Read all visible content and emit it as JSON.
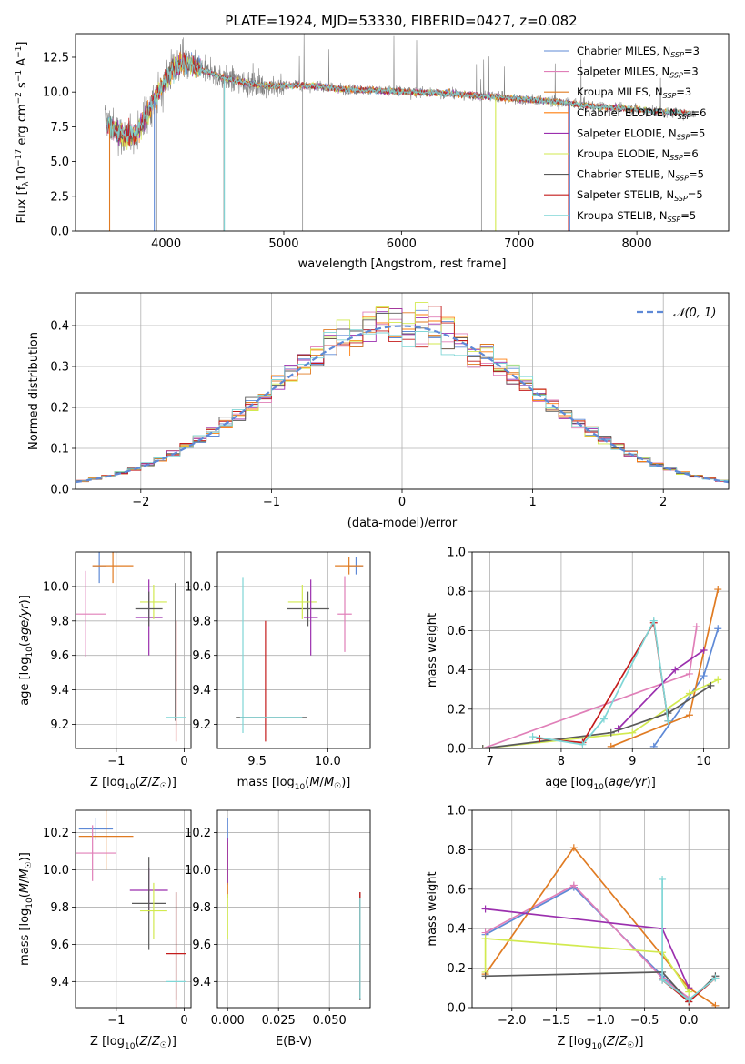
{
  "figure_title": "PLATE=1924, MJD=53330, FIBERID=0427, z=0.082",
  "colors": {
    "Chabrier MILES": "#5e89d6",
    "Salpeter MILES": "#e07fb8",
    "Kroupa MILES": "#e07b22",
    "Chabrier ELODIE": "#ff7f0e",
    "Salpeter ELODIE": "#9b2fae",
    "Kroupa ELODIE": "#d2ea4f",
    "Chabrier STELIB": "#5a5a5a",
    "Salpeter STELIB": "#c41c1c",
    "Kroupa STELIB": "#7fd6d6",
    "data": "#808080",
    "normal": "#5e89d6",
    "grid": "#b0b0b0"
  },
  "chart_data": [
    {
      "type": "line",
      "id": "spectrum",
      "title": "PLATE=1924, MJD=53330, FIBERID=0427, z=0.082",
      "xlabel": "wavelength [Angstrom, rest frame]",
      "ylabel": "Flux [f$_\\lambda$10$^{-17}$ erg cm$^{-2}$ s$^{-1}$ A$^{-1}$]",
      "ylabel_parts": [
        "Flux [f",
        "λ",
        "10",
        "−17",
        " erg cm",
        "−2",
        " s",
        "−1",
        " A",
        "−1",
        "]"
      ],
      "xlim": [
        3230,
        8780
      ],
      "ylim": [
        0,
        14.2
      ],
      "xticks": [
        4000,
        5000,
        6000,
        7000,
        8000
      ],
      "xtick_labels": [
        "4000",
        "5000",
        "6000",
        "7000",
        "8000"
      ],
      "yticks": [
        0.0,
        2.5,
        5.0,
        7.5,
        10.0,
        12.5
      ],
      "ytick_labels": [
        "0.0",
        "2.5",
        "5.0",
        "7.5",
        "10.0",
        "12.5"
      ],
      "grid": false,
      "legend_position": "top-right",
      "legend": [
        {
          "name": "Chabrier MILES",
          "nssp": "3"
        },
        {
          "name": "Salpeter MILES",
          "nssp": "3"
        },
        {
          "name": "Kroupa MILES",
          "nssp": "3"
        },
        {
          "name": "Chabrier ELODIE",
          "nssp": "6"
        },
        {
          "name": "Salpeter ELODIE",
          "nssp": "5"
        },
        {
          "name": "Kroupa ELODIE",
          "nssp": "6"
        },
        {
          "name": "Chabrier STELIB",
          "nssp": "5"
        },
        {
          "name": "Salpeter STELIB",
          "nssp": "5"
        },
        {
          "name": "Kroupa STELIB",
          "nssp": "5"
        }
      ],
      "legend_sub": "SSP",
      "legend_prefix": "N",
      "continuum": {
        "x": [
          3500,
          3550,
          3650,
          3750,
          3850,
          3950,
          4050,
          4150,
          4300,
          4500,
          4700,
          4900,
          5100,
          5300,
          5500,
          5800,
          6100,
          6400,
          6700,
          7000,
          7300,
          7600,
          7900,
          8200,
          8500
        ],
        "y": [
          7.8,
          7.4,
          6.8,
          7.0,
          8.6,
          10.2,
          11.6,
          12.2,
          11.6,
          11.0,
          10.6,
          10.4,
          10.5,
          10.4,
          10.2,
          10.1,
          10.0,
          9.9,
          9.7,
          9.5,
          9.3,
          9.0,
          8.8,
          8.6,
          8.4
        ]
      },
      "model_dropouts": [
        {
          "series": "Kroupa MILES",
          "x": 3520
        },
        {
          "series": "Chabrier MILES",
          "x": 3900
        },
        {
          "series": "Kroupa STELIB",
          "x": 4495
        },
        {
          "series": "Kroupa ELODIE",
          "x": 6800
        },
        {
          "series": "Salpeter STELIB",
          "x": 7420
        },
        {
          "series": "Chabrier MILES",
          "x": 7430
        }
      ]
    },
    {
      "type": "step",
      "id": "residuals",
      "xlabel": "(data-model)/error",
      "ylabel": "Normed distribution",
      "xlim": [
        -2.5,
        2.5
      ],
      "ylim": [
        0,
        0.48
      ],
      "xticks": [
        -2,
        -1,
        0,
        1,
        2
      ],
      "xtick_labels": [
        "−2",
        "−1",
        "0",
        "1",
        "2"
      ],
      "yticks": [
        0.0,
        0.1,
        0.2,
        0.3,
        0.4
      ],
      "ytick_labels": [
        "0.0",
        "0.1",
        "0.2",
        "0.3",
        "0.4"
      ],
      "grid": true,
      "legend_position": "top-right",
      "normal_label": "𝒩(0, 1)",
      "bin_width": 0.1
    },
    {
      "type": "scatter",
      "id": "age-vs-Z",
      "xlabel": "Z [log10(Z/Z☉)]",
      "ylabel": "age  [log10(age/yr)]",
      "xlim": [
        -1.6,
        0.1
      ],
      "ylim": [
        9.06,
        10.2
      ],
      "xticks": [
        -1,
        0
      ],
      "xtick_labels": [
        "−1",
        "0"
      ],
      "yticks": [
        9.2,
        9.4,
        9.6,
        9.8,
        10.0
      ],
      "ytick_labels": [
        "9.2",
        "9.4",
        "9.6",
        "9.8",
        "10.0"
      ],
      "grid": true,
      "points": [
        {
          "series": "Chabrier MILES",
          "x": -1.25,
          "y": 10.12,
          "xerr": 0.1,
          "yerr": 0.1
        },
        {
          "series": "Kroupa MILES",
          "x": -1.05,
          "y": 10.12,
          "xerr": 0.3,
          "yerr": 0.1
        },
        {
          "series": "Salpeter MILES",
          "x": -1.45,
          "y": 9.84,
          "xerr": 0.3,
          "yerr": 0.25
        },
        {
          "series": "Salpeter ELODIE",
          "x": -0.52,
          "y": 9.82,
          "xerr": 0.2,
          "yerr": 0.22
        },
        {
          "series": "Kroupa ELODIE",
          "x": -0.45,
          "y": 9.91,
          "xerr": 0.2,
          "yerr": 0.1
        },
        {
          "series": "Chabrier STELIB",
          "x": -0.52,
          "y": 9.87,
          "xerr": 0.2,
          "yerr": 0.1
        },
        {
          "series": "Chabrier STELIB",
          "x": -0.13,
          "y": 9.62,
          "xerr": 0.0,
          "yerr": 0.4
        },
        {
          "series": "Salpeter STELIB",
          "x": -0.12,
          "y": 9.45,
          "xerr": 0.0,
          "yerr": 0.35
        },
        {
          "series": "Kroupa STELIB",
          "x": -0.12,
          "y": 9.24,
          "xerr": 0.15,
          "yerr": 0.0
        }
      ]
    },
    {
      "type": "scatter",
      "id": "age-vs-mass",
      "xlabel": "mass [log10(M/M☉)]",
      "ylabel": "",
      "xlim": [
        9.22,
        10.3
      ],
      "ylim": [
        9.06,
        10.2
      ],
      "xticks": [
        9.5,
        10.0
      ],
      "xtick_labels": [
        "9.5",
        "10.0"
      ],
      "yticks": [
        9.2,
        9.4,
        9.6,
        9.8,
        10.0
      ],
      "ytick_labels": [
        "9.2",
        "9.4",
        "9.6",
        "9.8",
        "10.0"
      ],
      "grid": true,
      "points": [
        {
          "series": "Kroupa STELIB",
          "x": 9.4,
          "y": 9.6,
          "xerr": 0.0,
          "yerr": 0.45
        },
        {
          "series": "Salpeter STELIB",
          "x": 9.56,
          "y": 9.45,
          "xerr": 0.0,
          "yerr": 0.35
        },
        {
          "series": "Chabrier STELIB",
          "x": 9.6,
          "y": 9.24,
          "xerr": 0.25,
          "yerr": 0.0
        },
        {
          "series": "Kroupa STELIB",
          "x": 9.6,
          "y": 9.24,
          "xerr": 0.22,
          "yerr": 0.0
        },
        {
          "series": "Chabrier STELIB",
          "x": 9.86,
          "y": 9.87,
          "xerr": 0.15,
          "yerr": 0.1
        },
        {
          "series": "Kroupa ELODIE",
          "x": 9.82,
          "y": 9.91,
          "xerr": 0.1,
          "yerr": 0.1
        },
        {
          "series": "Salpeter ELODIE",
          "x": 9.88,
          "y": 9.82,
          "xerr": 0.05,
          "yerr": 0.22
        },
        {
          "series": "Salpeter MILES",
          "x": 10.12,
          "y": 9.84,
          "xerr": 0.05,
          "yerr": 0.22
        },
        {
          "series": "Chabrier MILES",
          "x": 10.2,
          "y": 10.12,
          "xerr": 0.05,
          "yerr": 0.05
        },
        {
          "series": "Kroupa MILES",
          "x": 10.15,
          "y": 10.12,
          "xerr": 0.1,
          "yerr": 0.05
        }
      ]
    },
    {
      "type": "line",
      "id": "weight-vs-age",
      "xlabel": "age  [log10(age/yr)]",
      "ylabel": "mass weight",
      "xlim": [
        6.75,
        10.35
      ],
      "ylim": [
        0.0,
        1.0
      ],
      "xticks": [
        7,
        8,
        9,
        10
      ],
      "xtick_labels": [
        "7",
        "8",
        "9",
        "10"
      ],
      "yticks": [
        0.0,
        0.2,
        0.4,
        0.6,
        0.8,
        1.0
      ],
      "ytick_labels": [
        "0.0",
        "0.2",
        "0.4",
        "0.6",
        "0.8",
        "1.0"
      ],
      "grid": true,
      "series": [
        {
          "name": "Chabrier MILES",
          "x": [
            9.3,
            10.0,
            10.2
          ],
          "y": [
            0.01,
            0.37,
            0.61
          ]
        },
        {
          "name": "Salpeter MILES",
          "x": [
            6.9,
            9.8,
            9.9
          ],
          "y": [
            0.0,
            0.38,
            0.62
          ]
        },
        {
          "name": "Kroupa MILES",
          "x": [
            8.7,
            9.8,
            10.2
          ],
          "y": [
            0.01,
            0.17,
            0.81
          ]
        },
        {
          "name": "Salpeter ELODIE",
          "x": [
            8.8,
            9.6,
            10.0
          ],
          "y": [
            0.1,
            0.4,
            0.5
          ]
        },
        {
          "name": "Kroupa ELODIE",
          "x": [
            6.9,
            9.0,
            9.8,
            10.2
          ],
          "y": [
            0.0,
            0.08,
            0.28,
            0.35
          ]
        },
        {
          "name": "Chabrier STELIB",
          "x": [
            6.9,
            8.7,
            9.5,
            10.1
          ],
          "y": [
            0.0,
            0.08,
            0.18,
            0.32
          ]
        },
        {
          "name": "Salpeter STELIB",
          "x": [
            7.7,
            8.3,
            9.3,
            9.5
          ],
          "y": [
            0.05,
            0.03,
            0.64,
            0.14
          ]
        },
        {
          "name": "Kroupa STELIB",
          "x": [
            7.6,
            8.3,
            8.6,
            9.3,
            9.5
          ],
          "y": [
            0.06,
            0.02,
            0.15,
            0.65,
            0.14
          ]
        }
      ]
    },
    {
      "type": "scatter",
      "id": "mass-vs-Z",
      "xlabel": "Z [log10(Z/Z☉)]",
      "ylabel": "mass [log10(M/M☉)]",
      "xlim": [
        -1.6,
        0.1
      ],
      "ylim": [
        9.26,
        10.32
      ],
      "xticks": [
        -1,
        0
      ],
      "xtick_labels": [
        "−1",
        "0"
      ],
      "yticks": [
        9.4,
        9.6,
        9.8,
        10.0,
        10.2
      ],
      "ytick_labels": [
        "9.4",
        "9.6",
        "9.8",
        "10.0",
        "10.2"
      ],
      "grid": true,
      "points": [
        {
          "series": "Chabrier MILES",
          "x": -1.3,
          "y": 10.22,
          "xerr": 0.25,
          "yerr": 0.06
        },
        {
          "series": "Kroupa MILES",
          "x": -1.15,
          "y": 10.18,
          "xerr": 0.4,
          "yerr": 0.18
        },
        {
          "series": "Salpeter MILES",
          "x": -1.35,
          "y": 10.09,
          "xerr": 0.35,
          "yerr": 0.15
        },
        {
          "series": "Salpeter ELODIE",
          "x": -0.52,
          "y": 9.89,
          "xerr": 0.28,
          "yerr": 0.12
        },
        {
          "series": "Chabrier STELIB",
          "x": -0.52,
          "y": 9.82,
          "xerr": 0.25,
          "yerr": 0.25
        },
        {
          "series": "Kroupa ELODIE",
          "x": -0.45,
          "y": 9.78,
          "xerr": 0.2,
          "yerr": 0.15
        },
        {
          "series": "Chabrier STELIB",
          "x": -0.12,
          "y": 9.59,
          "xerr": 0.0,
          "yerr": 0.29
        },
        {
          "series": "Salpeter STELIB",
          "x": -0.12,
          "y": 9.55,
          "xerr": 0.15,
          "yerr": 0.33
        },
        {
          "series": "Kroupa STELIB",
          "x": -0.12,
          "y": 9.4,
          "xerr": 0.15,
          "yerr": 0.0
        }
      ]
    },
    {
      "type": "scatter",
      "id": "mass-vs-ebv",
      "xlabel": "E(B-V)",
      "ylabel": "",
      "xlim": [
        -0.005,
        0.07
      ],
      "ylim": [
        9.26,
        10.32
      ],
      "xticks": [
        0.0,
        0.025,
        0.05
      ],
      "xtick_labels": [
        "0.000",
        "0.025",
        "0.050"
      ],
      "yticks": [
        9.4,
        9.6,
        9.8,
        10.0,
        10.2
      ],
      "ytick_labels": [
        "9.4",
        "9.6",
        "9.8",
        "10.0",
        "10.2"
      ],
      "grid": true,
      "points": [
        {
          "series": "Chabrier MILES",
          "x": 0.0,
          "y": 10.1,
          "xerr": 0.0,
          "yerr": 0.18
        },
        {
          "series": "Kroupa MILES",
          "x": 0.0,
          "y": 10.0,
          "xerr": 0.0,
          "yerr": 0.15
        },
        {
          "series": "Salpeter ELODIE",
          "x": 0.0,
          "y": 10.05,
          "xerr": 0.0,
          "yerr": 0.12
        },
        {
          "series": "Kroupa ELODIE",
          "x": 0.0,
          "y": 9.75,
          "xerr": 0.0,
          "yerr": 0.12
        },
        {
          "series": "Chabrier STELIB",
          "x": 0.065,
          "y": 9.59,
          "xerr": 0.0,
          "yerr": 0.29
        },
        {
          "series": "Salpeter STELIB",
          "x": 0.065,
          "y": 9.6,
          "xerr": 0.0,
          "yerr": 0.28
        },
        {
          "series": "Kroupa STELIB",
          "x": 0.065,
          "y": 9.58,
          "xerr": 0.0,
          "yerr": 0.27
        }
      ]
    },
    {
      "type": "line",
      "id": "weight-vs-Z",
      "xlabel": "Z [log10(Z/Z☉)]",
      "ylabel": "mass weight",
      "xlim": [
        -2.45,
        0.45
      ],
      "ylim": [
        0.0,
        1.0
      ],
      "xticks": [
        -2.0,
        -1.5,
        -1.0,
        -0.5,
        0.0
      ],
      "xtick_labels": [
        "−2.0",
        "−1.5",
        "−1.0",
        "−0.5",
        "0.0"
      ],
      "yticks": [
        0.0,
        0.2,
        0.4,
        0.6,
        0.8,
        1.0
      ],
      "ytick_labels": [
        "0.0",
        "0.2",
        "0.4",
        "0.6",
        "0.8",
        "1.0"
      ],
      "grid": true,
      "series": [
        {
          "name": "Chabrier MILES",
          "x": [
            -2.3,
            -1.3,
            -0.3,
            0.0
          ],
          "y": [
            0.37,
            0.61,
            0.16,
            0.04
          ]
        },
        {
          "name": "Salpeter MILES",
          "x": [
            -2.3,
            -1.3,
            -0.3,
            0.0
          ],
          "y": [
            0.38,
            0.62,
            0.15,
            0.05
          ]
        },
        {
          "name": "Kroupa MILES",
          "x": [
            -2.3,
            -1.3,
            0.0,
            0.3
          ],
          "y": [
            0.17,
            0.81,
            0.1,
            0.01
          ]
        },
        {
          "name": "Salpeter ELODIE",
          "x": [
            -2.3,
            -0.3,
            0.0
          ],
          "y": [
            0.5,
            0.4,
            0.1
          ]
        },
        {
          "name": "Kroupa ELODIE",
          "x": [
            -2.3,
            -2.3,
            -0.3,
            0.0
          ],
          "y": [
            0.18,
            0.35,
            0.28,
            0.08
          ]
        },
        {
          "name": "Chabrier STELIB",
          "x": [
            -2.3,
            -0.3,
            0.0,
            0.3
          ],
          "y": [
            0.16,
            0.18,
            0.03,
            0.16
          ]
        },
        {
          "name": "Salpeter STELIB",
          "x": [
            -0.3,
            0.0,
            0.3
          ],
          "y": [
            0.14,
            0.03,
            0.15
          ]
        },
        {
          "name": "Kroupa STELIB",
          "x": [
            -0.3,
            -0.3,
            0.0,
            0.3
          ],
          "y": [
            0.65,
            0.14,
            0.04,
            0.15
          ]
        }
      ]
    }
  ]
}
